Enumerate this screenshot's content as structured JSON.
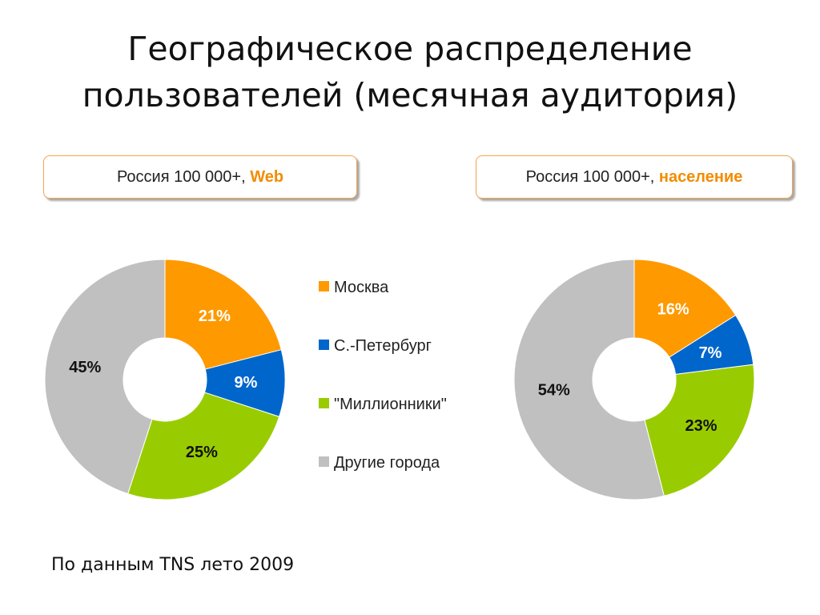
{
  "title": {
    "line1": "Географическое распределение",
    "line2": "пользователей (месячная аудитория)"
  },
  "pills": {
    "left": {
      "prefix": "Россия 100 000+, ",
      "highlight": "Web"
    },
    "right": {
      "prefix": "Россия 100 000+, ",
      "highlight": "население"
    }
  },
  "source": "По данным TNS лето 2009",
  "colors": {
    "moscow": "#ff9900",
    "spb": "#0066cc",
    "millionaires": "#99cc00",
    "other": "#c0c0c0",
    "accent": "#f28c00"
  },
  "chart_data": [
    {
      "type": "pie",
      "title": "Россия 100 000+, Web",
      "categories": [
        "Москва",
        "С.-Петербург",
        "\"Миллионники\"",
        "Другие города"
      ],
      "values": [
        21,
        9,
        25,
        45
      ],
      "labels": [
        "21%",
        "9%",
        "25%",
        "45%"
      ]
    },
    {
      "type": "pie",
      "title": "Россия 100 000+, население",
      "categories": [
        "Москва",
        "С.-Петербург",
        "\"Миллионники\"",
        "Другие города"
      ],
      "values": [
        16,
        7,
        23,
        54
      ],
      "labels": [
        "16%",
        "7%",
        "23%",
        "54%"
      ]
    }
  ],
  "legend": {
    "items": [
      {
        "label": "Москва",
        "color": "#ff9900"
      },
      {
        "label": "С.-Петербург",
        "color": "#0066cc"
      },
      {
        "label": "\"Миллионники\"",
        "color": "#99cc00"
      },
      {
        "label": "Другие города",
        "color": "#c0c0c0"
      }
    ]
  }
}
